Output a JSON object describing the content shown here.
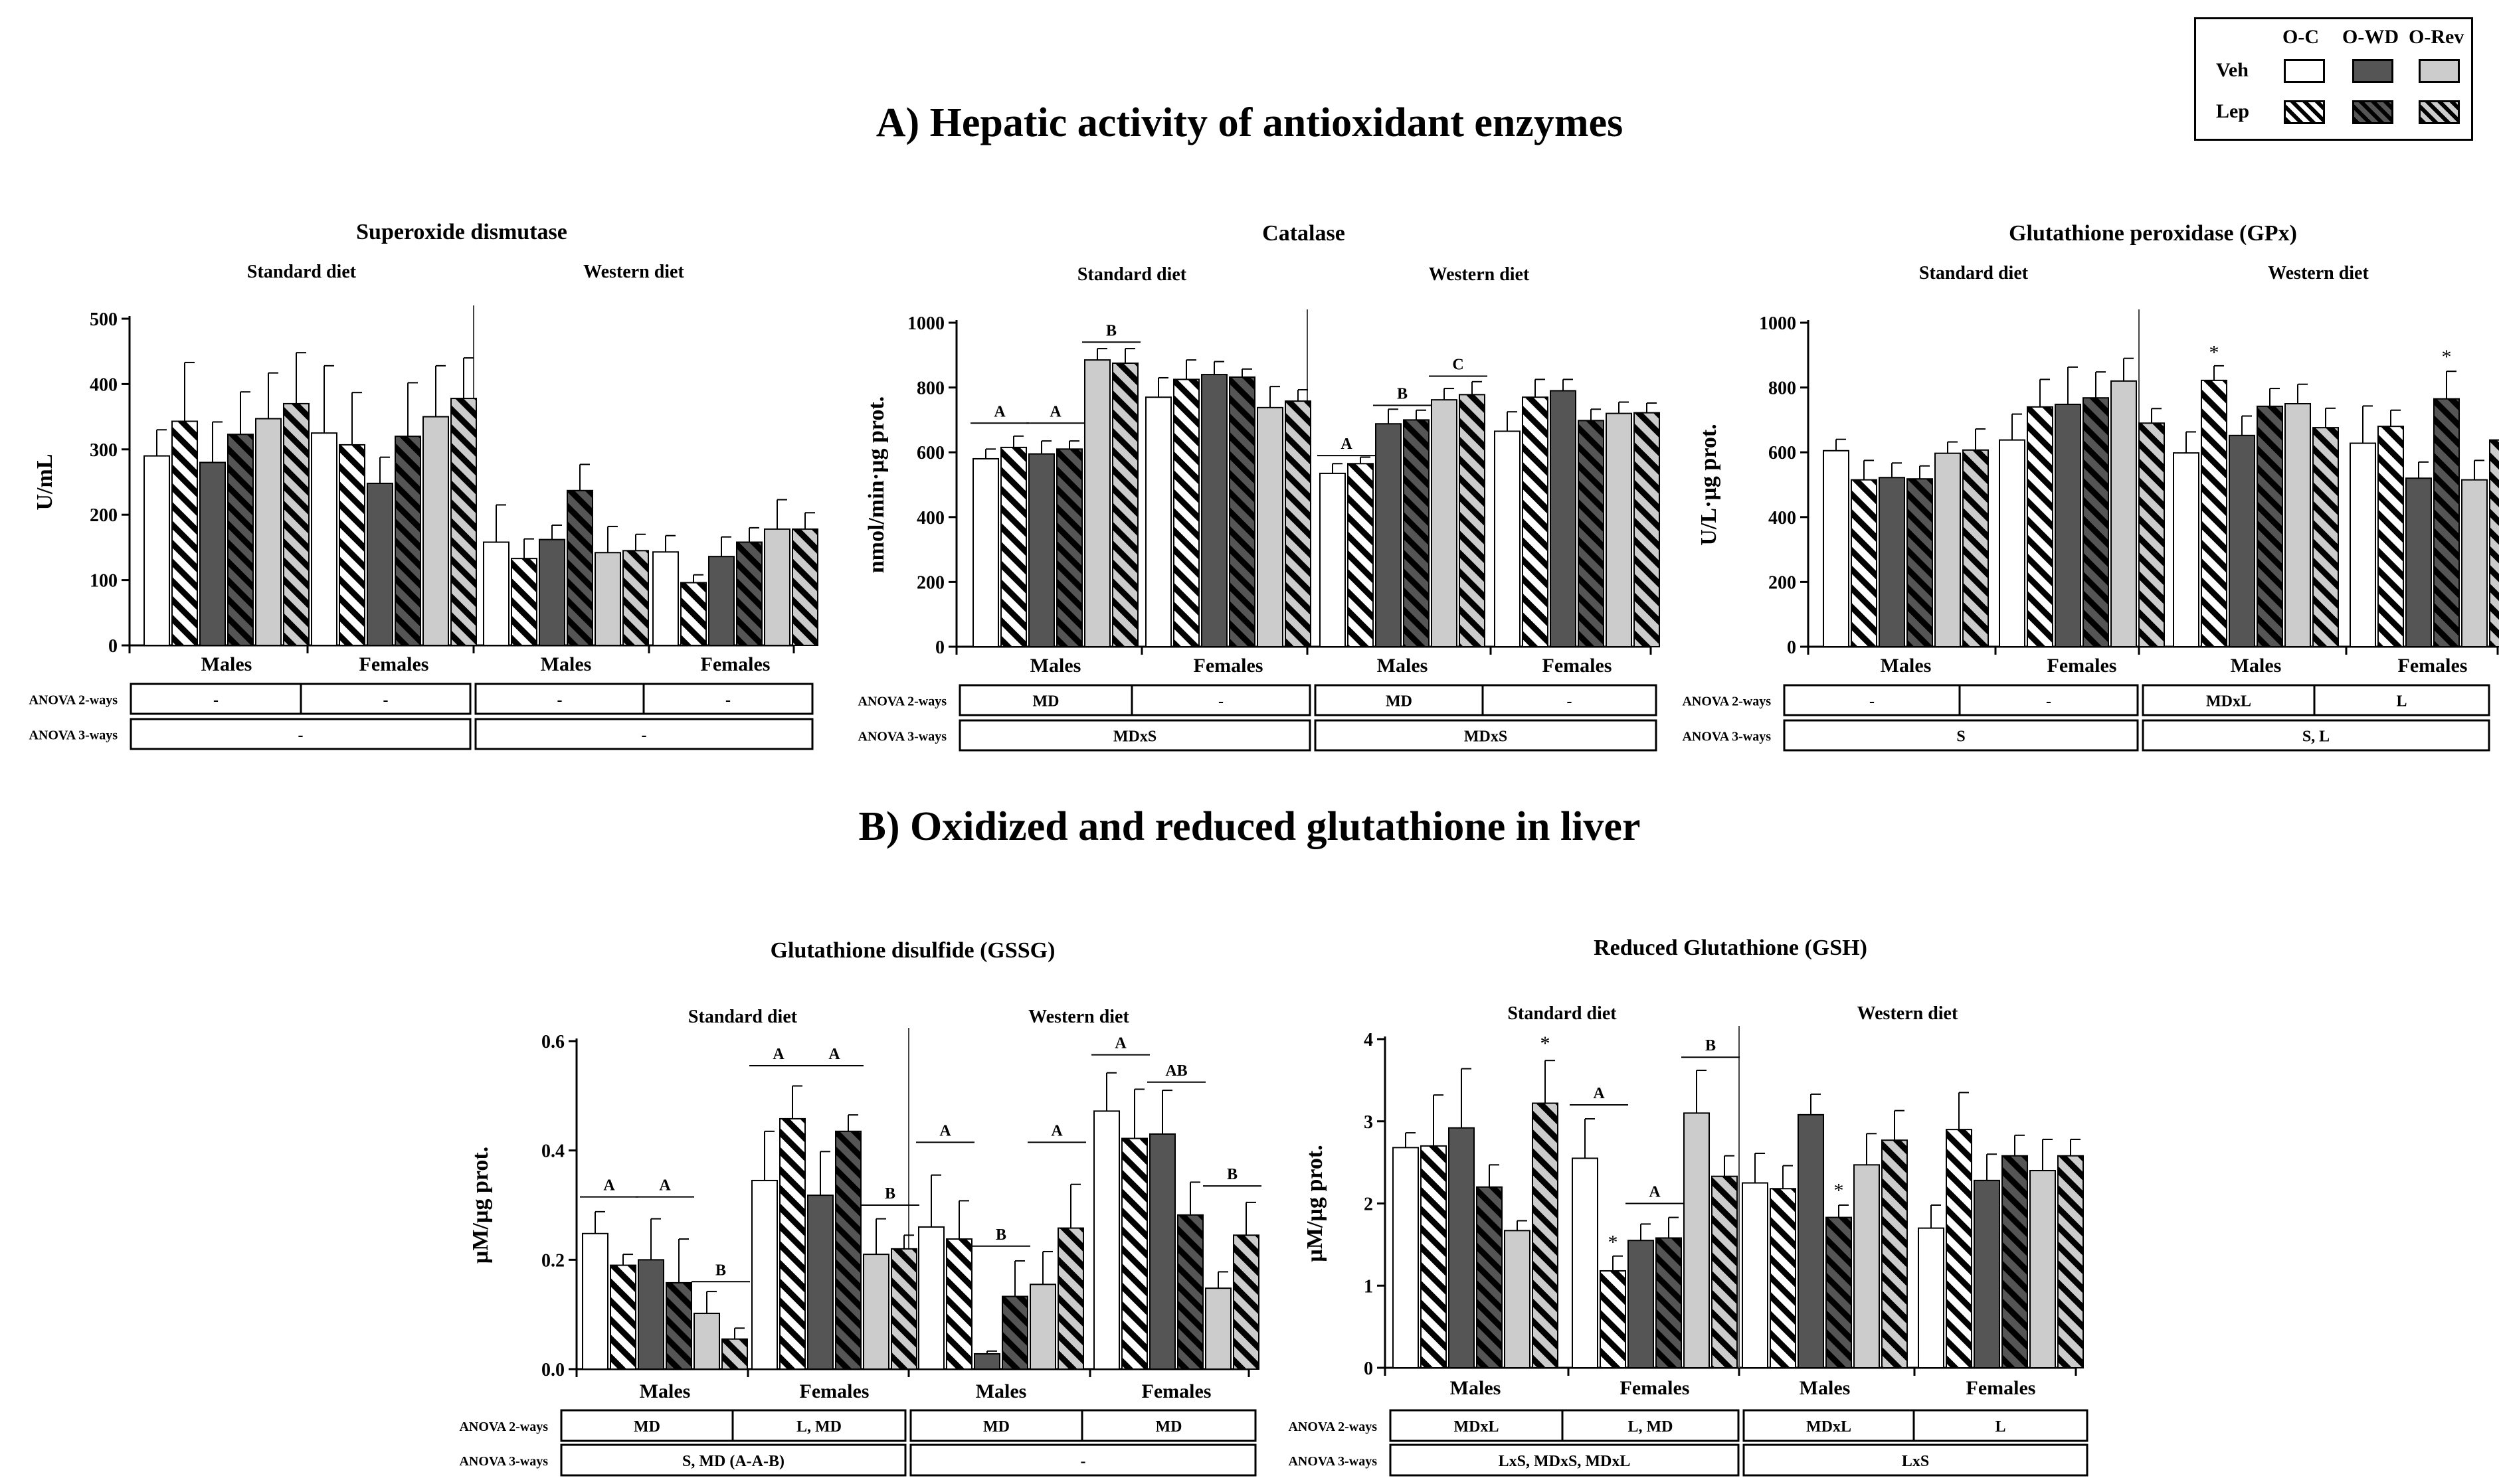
{
  "section_a_title": "A) Hepatic activity of antioxidant enzymes",
  "section_b_title": "B) Oxidized and reduced glutathione in liver",
  "legend": {
    "columns": [
      "O-C",
      "O-WD",
      "O-Rev"
    ],
    "rows": [
      "Veh",
      "Lep"
    ]
  },
  "colors": {
    "oc": "#ffffff",
    "owd": "#555555",
    "orev": "#cccccc",
    "stroke": "#000000"
  },
  "chart_data": [
    {
      "type": "bar",
      "title": "Superoxide dismutase",
      "ylabel": "U/mL",
      "ylim": [
        0,
        500
      ],
      "yticks": [
        "0",
        "100",
        "200",
        "300",
        "400",
        "500"
      ],
      "diet_labels": [
        "Standard diet",
        "Western diet"
      ],
      "groups": [
        "Males",
        "Females",
        "Males",
        "Females"
      ],
      "series": [
        "O-C Veh",
        "O-C Lep",
        "O-WD Veh",
        "O-WD Lep",
        "O-Rev Veh",
        "O-Rev Lep"
      ],
      "values": [
        [
          290,
          343,
          280,
          323,
          347,
          370
        ],
        [
          325,
          307,
          248,
          320,
          350,
          378
        ],
        [
          158,
          133,
          162,
          237,
          142,
          145
        ],
        [
          143,
          96,
          136,
          158,
          178,
          178
        ]
      ],
      "errors": [
        [
          40,
          90,
          62,
          65,
          70,
          78
        ],
        [
          103,
          80,
          40,
          82,
          78,
          62
        ],
        [
          57,
          30,
          22,
          40,
          40,
          25
        ],
        [
          25,
          12,
          30,
          22,
          45,
          25
        ]
      ],
      "annotations": [],
      "anova2": [
        "-",
        "-",
        "-",
        "-"
      ],
      "anova3": [
        "-",
        "-"
      ]
    },
    {
      "type": "bar",
      "title": "Catalase",
      "ylabel": "nmol/min·µg prot.",
      "ylim": [
        0,
        1000
      ],
      "yticks": [
        "0",
        "200",
        "400",
        "600",
        "800",
        "1000"
      ],
      "diet_labels": [
        "Standard diet",
        "Western diet"
      ],
      "groups": [
        "Males",
        "Females",
        "Males",
        "Females"
      ],
      "series": [
        "O-C Veh",
        "O-C Lep",
        "O-WD Veh",
        "O-WD Lep",
        "O-Rev Veh",
        "O-Rev Lep"
      ],
      "values": [
        [
          580,
          615,
          595,
          610,
          885,
          875
        ],
        [
          770,
          825,
          840,
          832,
          738,
          758
        ],
        [
          535,
          565,
          688,
          700,
          762,
          778
        ],
        [
          665,
          770,
          790,
          698,
          720,
          722
        ]
      ],
      "errors": [
        [
          30,
          35,
          40,
          25,
          35,
          45
        ],
        [
          60,
          60,
          40,
          25,
          65,
          35
        ],
        [
          30,
          20,
          45,
          30,
          35,
          40
        ],
        [
          60,
          55,
          35,
          35,
          35,
          30
        ]
      ],
      "annotations": [
        {
          "text": "A",
          "group": 0,
          "bars": [
            0,
            1
          ],
          "y": 690
        },
        {
          "text": "A",
          "group": 0,
          "bars": [
            2,
            3
          ],
          "y": 690
        },
        {
          "text": "B",
          "group": 0,
          "bars": [
            4,
            5
          ],
          "y": 940
        },
        {
          "text": "A",
          "group": 2,
          "bars": [
            0,
            1
          ],
          "y": 590
        },
        {
          "text": "B",
          "group": 2,
          "bars": [
            2,
            3
          ],
          "y": 745
        },
        {
          "text": "C",
          "group": 2,
          "bars": [
            4,
            5
          ],
          "y": 835
        }
      ],
      "anova2": [
        "MD",
        "-",
        "MD",
        "-"
      ],
      "anova3": [
        "MDxS",
        "MDxS"
      ]
    },
    {
      "type": "bar",
      "title": "Glutathione peroxidase (GPx)",
      "ylabel": "U/L·µg prot.",
      "ylim": [
        0,
        1000
      ],
      "yticks": [
        "0",
        "200",
        "400",
        "600",
        "800",
        "1000"
      ],
      "diet_labels": [
        "Standard diet",
        "Western diet"
      ],
      "groups": [
        "Males",
        "Females",
        "Males",
        "Females"
      ],
      "series": [
        "O-C Veh",
        "O-C Lep",
        "O-WD Veh",
        "O-WD Lep",
        "O-Rev Veh",
        "O-Rev Lep"
      ],
      "values": [
        [
          605,
          515,
          522,
          518,
          597,
          607
        ],
        [
          638,
          740,
          748,
          768,
          820,
          690
        ],
        [
          598,
          822,
          652,
          742,
          750,
          676
        ],
        [
          628,
          680,
          520,
          765,
          515,
          638
        ]
      ],
      "errors": [
        [
          35,
          60,
          45,
          40,
          35,
          65
        ],
        [
          80,
          85,
          115,
          80,
          70,
          45
        ],
        [
          65,
          45,
          60,
          55,
          60,
          60
        ],
        [
          115,
          50,
          50,
          85,
          60,
          75
        ]
      ],
      "annotations": [
        {
          "text": "*",
          "group": 2,
          "bars": [
            1
          ],
          "y": 888
        },
        {
          "text": "*",
          "group": 3,
          "bars": [
            3
          ],
          "y": 875
        }
      ],
      "anova2": [
        "-",
        "-",
        "MDxL",
        "L"
      ],
      "anova3": [
        "S",
        "S, L"
      ]
    },
    {
      "type": "bar",
      "title": "Glutathione disulfide (GSSG)",
      "ylabel": "µM/µg prot.",
      "ylim": [
        0,
        0.6
      ],
      "yticks": [
        "0.0",
        "0.2",
        "0.4",
        "0.6"
      ],
      "diet_labels": [
        "Standard diet",
        "Western diet"
      ],
      "groups": [
        "Males",
        "Females",
        "Males",
        "Females"
      ],
      "series": [
        "O-C Veh",
        "O-C Lep",
        "O-WD Veh",
        "O-WD Lep",
        "O-Rev Veh",
        "O-Rev Lep"
      ],
      "values": [
        [
          0.248,
          0.19,
          0.2,
          0.158,
          0.102,
          0.055
        ],
        [
          0.345,
          0.458,
          0.318,
          0.435,
          0.21,
          0.22
        ],
        [
          0.26,
          0.238,
          0.028,
          0.133,
          0.155,
          0.258
        ],
        [
          0.472,
          0.422,
          0.43,
          0.282,
          0.148,
          0.245
        ]
      ],
      "errors": [
        [
          0.04,
          0.02,
          0.075,
          0.08,
          0.04,
          0.02
        ],
        [
          0.09,
          0.06,
          0.08,
          0.03,
          0.065,
          0.025
        ],
        [
          0.095,
          0.07,
          0.005,
          0.065,
          0.06,
          0.08
        ],
        [
          0.07,
          0.09,
          0.08,
          0.06,
          0.03,
          0.06
        ]
      ],
      "annotations": [
        {
          "text": "A",
          "group": 0,
          "bars": [
            0,
            1
          ],
          "y": 0.315
        },
        {
          "text": "A",
          "group": 0,
          "bars": [
            2,
            3
          ],
          "y": 0.315
        },
        {
          "text": "B",
          "group": 0,
          "bars": [
            4,
            5
          ],
          "y": 0.16
        },
        {
          "text": "A",
          "group": 1,
          "bars": [
            0,
            1
          ],
          "y": 0.555
        },
        {
          "text": "A",
          "group": 1,
          "bars": [
            2,
            3
          ],
          "y": 0.555
        },
        {
          "text": "B",
          "group": 1,
          "bars": [
            4,
            5
          ],
          "y": 0.3
        },
        {
          "text": "A",
          "group": 2,
          "bars": [
            0,
            1
          ],
          "y": 0.415
        },
        {
          "text": "B",
          "group": 2,
          "bars": [
            2,
            3
          ],
          "y": 0.225
        },
        {
          "text": "A",
          "group": 2,
          "bars": [
            4,
            5
          ],
          "y": 0.415
        },
        {
          "text": "A",
          "group": 3,
          "bars": [
            0,
            1
          ],
          "y": 0.575
        },
        {
          "text": "AB",
          "group": 3,
          "bars": [
            2,
            3
          ],
          "y": 0.525
        },
        {
          "text": "B",
          "group": 3,
          "bars": [
            4,
            5
          ],
          "y": 0.335
        }
      ],
      "anova2": [
        "MD",
        "L, MD",
        "MD",
        "MD"
      ],
      "anova3": [
        "S, MD (A-A-B)",
        "-"
      ]
    },
    {
      "type": "bar",
      "title": "Reduced Glutathione (GSH)",
      "ylabel": "µM/µg prot.",
      "ylim": [
        0,
        4
      ],
      "yticks": [
        "0",
        "1",
        "2",
        "3",
        "4"
      ],
      "diet_labels": [
        "Standard diet",
        "Western diet"
      ],
      "groups": [
        "Males",
        "Females",
        "Males",
        "Females"
      ],
      "series": [
        "O-C Veh",
        "O-C Lep",
        "O-WD Veh",
        "O-WD Lep",
        "O-Rev Veh",
        "O-Rev Lep"
      ],
      "values": [
        [
          2.68,
          2.7,
          2.92,
          2.2,
          1.67,
          3.22
        ],
        [
          2.55,
          1.18,
          1.55,
          1.58,
          3.1,
          2.33
        ],
        [
          2.25,
          2.18,
          3.08,
          1.83,
          2.47,
          2.77
        ],
        [
          1.7,
          2.9,
          2.28,
          2.58,
          2.4,
          2.58
        ]
      ],
      "errors": [
        [
          0.18,
          0.62,
          0.72,
          0.27,
          0.12,
          0.52
        ],
        [
          0.48,
          0.18,
          0.2,
          0.25,
          0.52,
          0.25
        ],
        [
          0.36,
          0.28,
          0.25,
          0.15,
          0.38,
          0.36
        ],
        [
          0.28,
          0.45,
          0.32,
          0.25,
          0.38,
          0.2
        ]
      ],
      "annotations": [
        {
          "text": "*",
          "group": 0,
          "bars": [
            5
          ],
          "y": 3.87
        },
        {
          "text": "A",
          "group": 1,
          "bars": [
            0,
            1
          ],
          "y": 3.2
        },
        {
          "text": "*",
          "group": 1,
          "bars": [
            1
          ],
          "y": 1.45
        },
        {
          "text": "A",
          "group": 1,
          "bars": [
            2,
            3
          ],
          "y": 2.0
        },
        {
          "text": "B",
          "group": 1,
          "bars": [
            4,
            5
          ],
          "y": 3.78
        },
        {
          "text": "*",
          "group": 2,
          "bars": [
            3
          ],
          "y": 2.08
        }
      ],
      "anova2": [
        "MDxL",
        "L, MD",
        "MDxL",
        "L"
      ],
      "anova3": [
        "LxS, MDxS, MDxL",
        "LxS"
      ]
    }
  ],
  "anova_labels": {
    "two_way": "ANOVA 2-ways",
    "three_way": "ANOVA 3-ways"
  }
}
